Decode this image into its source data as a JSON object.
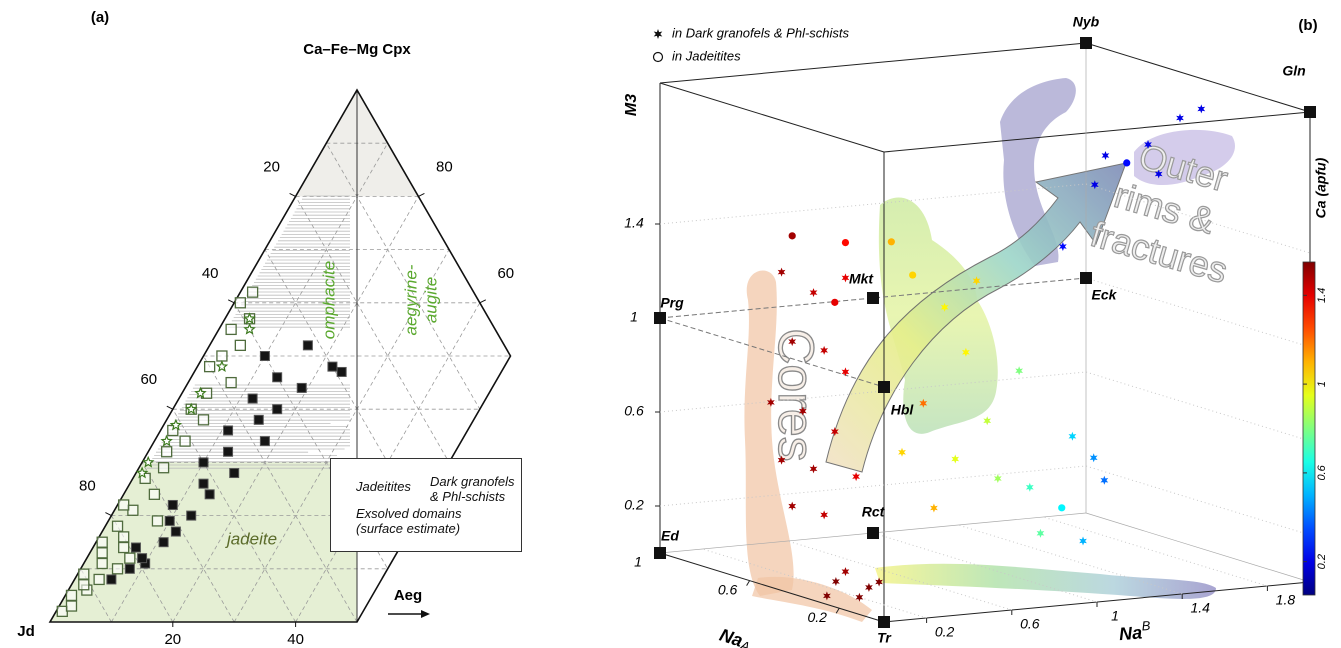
{
  "chart_data": [
    {
      "type": "ternary",
      "panel_label": "(a)",
      "top_label": "Ca–Fe–Mg Cpx",
      "left_label": "Jd",
      "right_label": "Aeg",
      "aeg_lim": [
        0,
        50
      ],
      "jd_ticks": [
        20,
        40,
        60,
        80
      ],
      "q_ticks": [
        80,
        60
      ],
      "aeg_ticks": [
        20,
        40
      ],
      "gridlines": [
        10,
        20,
        30,
        40,
        50,
        60,
        70,
        80,
        90
      ],
      "omphacite_label": "omphacite",
      "aegyrine_augite_label": [
        "aegyrine-",
        "augite"
      ],
      "jadeite_label": "jadeite",
      "series": [
        {
          "name": "Jadeitites",
          "marker": "open-square",
          "color": "#4f6b3d",
          "q": [
            2,
            3,
            5,
            6,
            7,
            8,
            9,
            10,
            11,
            12,
            13,
            14,
            15,
            16,
            18,
            19,
            21,
            22,
            24,
            27,
            29,
            32,
            34,
            36,
            38,
            40,
            43,
            45,
            48,
            50,
            52,
            55,
            57,
            60,
            62
          ],
          "aeg": [
            1,
            2,
            1,
            3,
            2,
            4,
            1,
            6,
            3,
            7,
            2,
            5,
            1,
            4,
            2,
            8,
            3,
            1,
            5,
            2,
            4,
            3,
            5,
            2,
            6,
            3,
            4,
            7,
            2,
            3,
            5,
            2,
            4,
            1,
            2
          ]
        },
        {
          "name": "Dark granofels & Phl-schists",
          "marker": "filled-square",
          "color": "#151515",
          "q": [
            8,
            10,
            11,
            12,
            14,
            15,
            17,
            19,
            20,
            22,
            24,
            26,
            28,
            30,
            32,
            34,
            36,
            38,
            40,
            42,
            44,
            46,
            48,
            50,
            52,
            47
          ],
          "aeg": [
            6,
            8,
            10,
            9,
            7,
            11,
            12,
            10,
            13,
            9,
            14,
            12,
            16,
            10,
            13,
            18,
            11,
            15,
            17,
            12,
            19,
            14,
            22,
            10,
            16,
            24
          ]
        },
        {
          "name": "Exsolved domains (surface estimate)",
          "marker": "star",
          "color": "#3d7a1f",
          "q": [
            28,
            30,
            34,
            37,
            40,
            43,
            48,
            55,
            57
          ],
          "aeg": [
            1,
            1,
            2,
            2,
            3,
            3,
            4,
            5,
            4
          ]
        }
      ]
    },
    {
      "type": "scatter3d",
      "panel_label": "(b)",
      "m3_label": "M3",
      "na_a_label": "Na",
      "na_a_sub": "A",
      "na_b_label": "Na",
      "na_b_sup": "B",
      "colorbar_label": "Ca (apfu)",
      "na_a_lim": [
        0,
        1
      ],
      "na_b_lim": [
        0,
        2
      ],
      "m3_lim": [
        0,
        2
      ],
      "clim": [
        0.05,
        1.55
      ],
      "na_a_ticks": [
        0.2,
        0.6,
        1
      ],
      "na_b_ticks": [
        0.2,
        0.6,
        1,
        1.4,
        1.8
      ],
      "m3_ticks": [
        0.2,
        0.6,
        1,
        1.4
      ],
      "colorbar_ticks": [
        0.2,
        0.6,
        1,
        1.4
      ],
      "cores_label": "Cores",
      "rims_label": [
        "Outer",
        "rims &",
        "fractures"
      ],
      "endmembers": [
        {
          "name": "Nyb",
          "na_a": 1,
          "na_b": 2,
          "m3": 2
        },
        {
          "name": "Gln",
          "na_a": 0,
          "na_b": 2,
          "m3": 2
        },
        {
          "name": "Prg",
          "na_a": 1,
          "na_b": 0,
          "m3": 1
        },
        {
          "name": "Mkt",
          "na_a": 1,
          "na_b": 1,
          "m3": 1
        },
        {
          "name": "Eck",
          "na_a": 1,
          "na_b": 2,
          "m3": 1
        },
        {
          "name": "Hbl",
          "na_a": 0,
          "na_b": 0,
          "m3": 1
        },
        {
          "name": "Rct",
          "na_a": 1,
          "na_b": 1,
          "m3": 0
        },
        {
          "name": "Ed",
          "na_a": 1,
          "na_b": 0,
          "m3": 0
        },
        {
          "name": "Tr",
          "na_a": 0,
          "na_b": 0,
          "m3": 0
        }
      ],
      "series": [
        {
          "name": "in Dark granofels & Phl-schists",
          "marker": "star",
          "na_a": [
            0.6,
            0.6,
            0.6,
            0.6,
            0.6,
            0.6,
            0.6,
            0.6,
            0.6,
            0.6,
            0.6,
            0.6,
            0.6,
            0.6,
            0.5,
            0.4,
            0.3,
            0.6,
            0.45,
            0.35,
            0.3,
            0.3,
            0.3,
            0.3,
            0.3,
            0.3,
            0.3,
            0.3,
            0.3,
            0.3,
            0.3,
            0.3,
            0.3,
            0.3,
            0.3,
            0.3,
            0.2,
            0.2,
            0.2,
            0.2,
            0.2,
            0.2,
            0.2
          ],
          "na_b": [
            0.15,
            0.3,
            0.45,
            0.2,
            0.35,
            0.1,
            0.25,
            0.4,
            0.15,
            0.3,
            0.2,
            0.35,
            0.45,
            0.5,
            0.3,
            0.35,
            0.2,
            0.45,
            0.45,
            0.1,
            0.6,
            0.7,
            0.5,
            0.4,
            0.65,
            0.8,
            0.85,
            0.55,
            0.95,
            0.75,
            1.0,
            1.05,
            1.2,
            1.3,
            1.35,
            1.25,
            1.05,
            1.2,
            1.25,
            1.45,
            1.5,
            1.6,
            1.7
          ],
          "m3": [
            1.3,
            1.2,
            1.25,
            1.0,
            0.95,
            0.75,
            0.7,
            0.6,
            0.5,
            0.45,
            0.3,
            0.25,
            0.85,
            0.4,
            0,
            0,
            0,
            0,
            0,
            0,
            1.2,
            1.0,
            0.8,
            0.6,
            0.55,
            0.7,
            0.45,
            0.35,
            0.9,
            1.3,
            0.4,
            0.2,
            0.6,
            0.5,
            0.4,
            0.15,
            1.45,
            1.7,
            1.82,
            1.85,
            1.72,
            1.95,
            1.98
          ],
          "ca": [
            1.5,
            1.45,
            1.4,
            1.5,
            1.45,
            1.5,
            1.5,
            1.45,
            1.5,
            1.5,
            1.5,
            1.45,
            1.4,
            1.4,
            1.55,
            1.55,
            1.55,
            1.5,
            1.55,
            1.55,
            1.0,
            1.0,
            1.2,
            1.05,
            0.95,
            0.9,
            0.85,
            1.1,
            0.8,
            1.05,
            0.7,
            0.75,
            0.55,
            0.45,
            0.4,
            0.5,
            0.25,
            0.2,
            0.2,
            0.2,
            0.2,
            0.2,
            0.2
          ]
        },
        {
          "name": "in Jadeitites",
          "marker": "circle",
          "na_a": [
            0.6,
            0.6,
            0.6,
            0.3,
            0.3,
            0.3,
            0.2
          ],
          "na_b": [
            0.2,
            0.45,
            0.4,
            0.35,
            0.45,
            1.15,
            1.35
          ],
          "m3": [
            1.45,
            1.4,
            1.15,
            1.5,
            1.35,
            0.3,
            1.78
          ],
          "ca": [
            1.5,
            1.35,
            1.4,
            1.1,
            1.05,
            0.6,
            0.25
          ]
        }
      ]
    }
  ]
}
